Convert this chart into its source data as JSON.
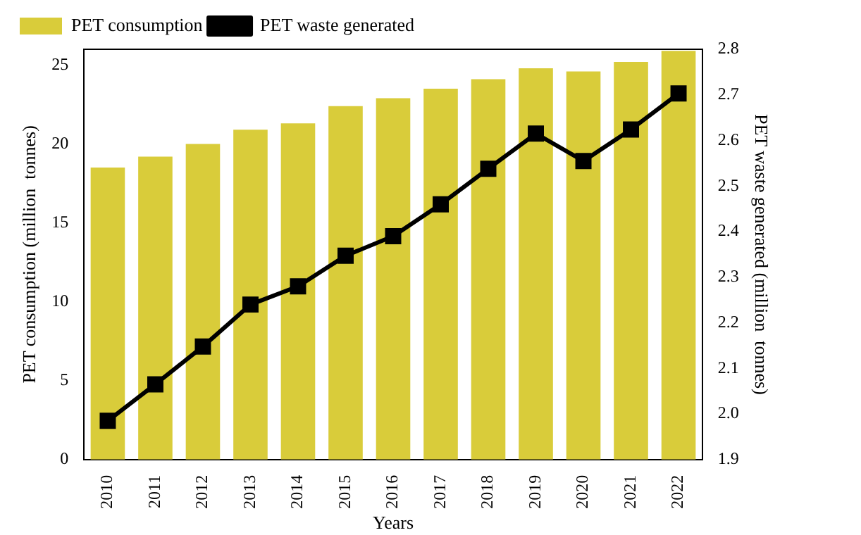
{
  "chart_data": {
    "type": "bar",
    "xlabel": "Years",
    "ylabel": "PET consumption (million  tonnes)",
    "y2label": "PET waste generated (million  tonnes)",
    "categories": [
      "2010",
      "2011",
      "2012",
      "2013",
      "2014",
      "2015",
      "2016",
      "2017",
      "2018",
      "2019",
      "2020",
      "2021",
      "2022"
    ],
    "series": [
      {
        "name": "PET consumption",
        "color": "#d9cc3a",
        "values": [
          18.5,
          19.2,
          20.0,
          20.9,
          21.3,
          22.4,
          22.9,
          23.5,
          24.1,
          24.8,
          24.6,
          25.2,
          25.9
        ]
      },
      {
        "name": "PET waste generated",
        "type": "line",
        "axis": "y2",
        "color": "#000000",
        "marker": "square",
        "values": [
          1.985,
          2.065,
          2.148,
          2.24,
          2.28,
          2.347,
          2.39,
          2.46,
          2.538,
          2.615,
          2.555,
          2.624,
          2.703
        ]
      }
    ],
    "ylim": [
      0,
      26
    ],
    "yticks": [
      0,
      5,
      10,
      15,
      20,
      25
    ],
    "y2lim": [
      1.9,
      2.8
    ],
    "y2ticks": [
      1.9,
      {
        "value": 2,
        "label": "2.0"
      },
      2.1,
      2.2,
      2.3,
      2.4,
      2.5,
      2.6,
      2.7,
      2.8
    ],
    "grid": false,
    "legend": "top left"
  }
}
